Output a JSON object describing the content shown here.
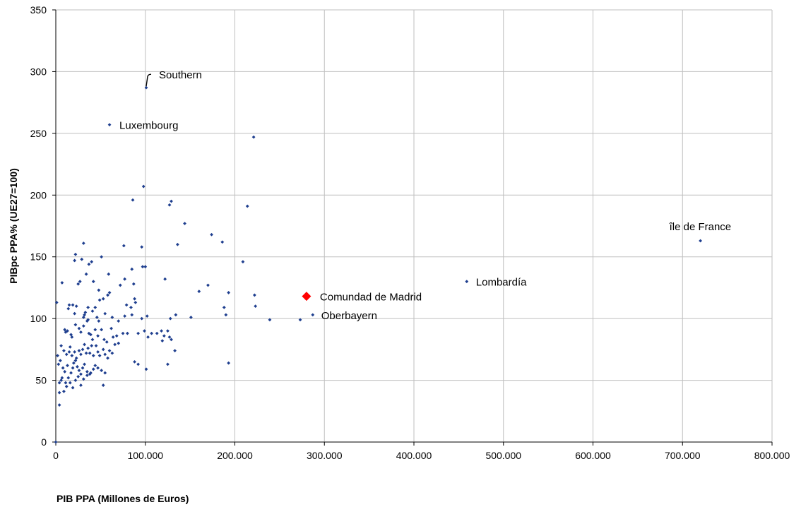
{
  "chart_data": {
    "type": "scatter",
    "title": "",
    "xlabel": "PIB PPA (Millones de Euros)",
    "ylabel": "PIBpc PPA% (UE27=100)",
    "xlim": [
      0,
      800000
    ],
    "ylim": [
      0,
      350
    ],
    "x_ticks": [
      0,
      100000,
      200000,
      300000,
      400000,
      500000,
      600000,
      700000,
      800000
    ],
    "x_tick_labels": [
      "0",
      "100.000",
      "200.000",
      "300.000",
      "400.000",
      "500.000",
      "600.000",
      "700.000",
      "800.000"
    ],
    "y_ticks": [
      0,
      50,
      100,
      150,
      200,
      250,
      300,
      350
    ],
    "y_tick_labels": [
      "0",
      "50",
      "100",
      "150",
      "200",
      "250",
      "300",
      "350"
    ],
    "grid": true,
    "legend": "none",
    "colors": {
      "points": "#1f3f8f",
      "highlight": "#ff0000"
    },
    "highlight": {
      "label": "Comundad de Madrid",
      "x": 280000,
      "y": 118
    },
    "annotations": [
      {
        "text": "Southern",
        "x": 101000,
        "y": 287
      },
      {
        "text": "Luxembourg",
        "x": 60000,
        "y": 257
      },
      {
        "text": "île de France",
        "x": 720000,
        "y": 163
      },
      {
        "text": "Lombardía",
        "x": 459000,
        "y": 130
      },
      {
        "text": "Oberbayern",
        "x": 287000,
        "y": 103
      }
    ],
    "series": [
      {
        "points": [
          [
            101000,
            287
          ],
          [
            60000,
            257
          ],
          [
            221000,
            247
          ],
          [
            98000,
            207
          ],
          [
            86000,
            196
          ],
          [
            129000,
            195
          ],
          [
            127000,
            192
          ],
          [
            214000,
            191
          ],
          [
            144000,
            177
          ],
          [
            174000,
            168
          ],
          [
            186000,
            162
          ],
          [
            720000,
            163
          ],
          [
            31000,
            161
          ],
          [
            76000,
            159
          ],
          [
            96000,
            158
          ],
          [
            136000,
            160
          ],
          [
            22000,
            152
          ],
          [
            51000,
            150
          ],
          [
            29000,
            148
          ],
          [
            21000,
            147
          ],
          [
            37000,
            144
          ],
          [
            40000,
            146
          ],
          [
            209000,
            146
          ],
          [
            97000,
            142
          ],
          [
            100000,
            142
          ],
          [
            85000,
            140
          ],
          [
            34000,
            136
          ],
          [
            59000,
            136
          ],
          [
            77000,
            132
          ],
          [
            122000,
            132
          ],
          [
            459000,
            130
          ],
          [
            7000,
            129
          ],
          [
            25000,
            128
          ],
          [
            27000,
            130
          ],
          [
            42000,
            130
          ],
          [
            72000,
            127
          ],
          [
            87000,
            128
          ],
          [
            170000,
            127
          ],
          [
            48000,
            123
          ],
          [
            60000,
            121
          ],
          [
            58000,
            119
          ],
          [
            193000,
            121
          ],
          [
            160000,
            122
          ],
          [
            222000,
            119
          ],
          [
            49000,
            115
          ],
          [
            53000,
            116
          ],
          [
            88000,
            116
          ],
          [
            89000,
            113
          ],
          [
            1000,
            113
          ],
          [
            19000,
            111
          ],
          [
            14000,
            108
          ],
          [
            15000,
            111
          ],
          [
            23000,
            110
          ],
          [
            36000,
            109
          ],
          [
            44000,
            109
          ],
          [
            41000,
            106
          ],
          [
            55000,
            104
          ],
          [
            84000,
            109
          ],
          [
            79000,
            111
          ],
          [
            21000,
            104
          ],
          [
            31000,
            101
          ],
          [
            32000,
            103
          ],
          [
            33000,
            105
          ],
          [
            36000,
            99
          ],
          [
            46000,
            101
          ],
          [
            48000,
            98
          ],
          [
            63000,
            101
          ],
          [
            70000,
            98
          ],
          [
            77000,
            102
          ],
          [
            85000,
            103
          ],
          [
            96000,
            100
          ],
          [
            102000,
            102
          ],
          [
            188000,
            109
          ],
          [
            223000,
            110
          ],
          [
            134000,
            103
          ],
          [
            151000,
            101
          ],
          [
            128000,
            100
          ],
          [
            190000,
            103
          ],
          [
            287000,
            103
          ],
          [
            273000,
            99
          ],
          [
            239000,
            99
          ],
          [
            11000,
            89
          ],
          [
            10000,
            91
          ],
          [
            13000,
            90
          ],
          [
            17000,
            87
          ],
          [
            18000,
            85
          ],
          [
            22000,
            95
          ],
          [
            26000,
            92
          ],
          [
            28000,
            89
          ],
          [
            31000,
            94
          ],
          [
            35000,
            98
          ],
          [
            37000,
            88
          ],
          [
            39000,
            87
          ],
          [
            41000,
            83
          ],
          [
            44000,
            91
          ],
          [
            47000,
            86
          ],
          [
            51000,
            91
          ],
          [
            54000,
            83
          ],
          [
            57000,
            81
          ],
          [
            62000,
            92
          ],
          [
            64000,
            85
          ],
          [
            66000,
            79
          ],
          [
            68000,
            86
          ],
          [
            70000,
            80
          ],
          [
            75000,
            88
          ],
          [
            80000,
            88
          ],
          [
            92000,
            88
          ],
          [
            99000,
            90
          ],
          [
            103000,
            85
          ],
          [
            107000,
            88
          ],
          [
            113000,
            88
          ],
          [
            118000,
            90
          ],
          [
            119000,
            82
          ],
          [
            121000,
            86
          ],
          [
            125000,
            90
          ],
          [
            127000,
            85
          ],
          [
            129000,
            83
          ],
          [
            6000,
            78
          ],
          [
            9000,
            74
          ],
          [
            12000,
            71
          ],
          [
            15000,
            73
          ],
          [
            16000,
            77
          ],
          [
            18000,
            70
          ],
          [
            21000,
            73
          ],
          [
            23000,
            68
          ],
          [
            26000,
            74
          ],
          [
            28000,
            71
          ],
          [
            30000,
            75
          ],
          [
            32000,
            79
          ],
          [
            34000,
            72
          ],
          [
            36000,
            76
          ],
          [
            38000,
            72
          ],
          [
            40000,
            78
          ],
          [
            42000,
            70
          ],
          [
            45000,
            78
          ],
          [
            47000,
            73
          ],
          [
            49000,
            70
          ],
          [
            53000,
            75
          ],
          [
            55000,
            71
          ],
          [
            58000,
            68
          ],
          [
            60000,
            74
          ],
          [
            63000,
            72
          ],
          [
            3000,
            63
          ],
          [
            5000,
            66
          ],
          [
            8000,
            60
          ],
          [
            10000,
            57
          ],
          [
            13000,
            62
          ],
          [
            17000,
            56
          ],
          [
            19000,
            60
          ],
          [
            20000,
            64
          ],
          [
            22000,
            66
          ],
          [
            24000,
            61
          ],
          [
            26000,
            58
          ],
          [
            28000,
            55
          ],
          [
            30000,
            60
          ],
          [
            32000,
            63
          ],
          [
            35000,
            57
          ],
          [
            39000,
            56
          ],
          [
            42000,
            59
          ],
          [
            44000,
            62
          ],
          [
            47000,
            60
          ],
          [
            51000,
            58
          ],
          [
            55000,
            56
          ],
          [
            88000,
            65
          ],
          [
            92000,
            63
          ],
          [
            101000,
            59
          ],
          [
            125000,
            63
          ],
          [
            133000,
            74
          ],
          [
            193000,
            64
          ],
          [
            4000,
            48
          ],
          [
            6000,
            50
          ],
          [
            9000,
            41
          ],
          [
            12000,
            45
          ],
          [
            14000,
            52
          ],
          [
            16000,
            48
          ],
          [
            19000,
            44
          ],
          [
            22000,
            50
          ],
          [
            25000,
            53
          ],
          [
            28000,
            46
          ],
          [
            31000,
            51
          ],
          [
            35000,
            54
          ],
          [
            38000,
            55
          ],
          [
            53000,
            46
          ],
          [
            2000,
            70
          ],
          [
            4000,
            40
          ],
          [
            7000,
            52
          ],
          [
            11000,
            48
          ],
          [
            4000,
            30
          ],
          [
            0,
            0
          ]
        ]
      }
    ]
  }
}
